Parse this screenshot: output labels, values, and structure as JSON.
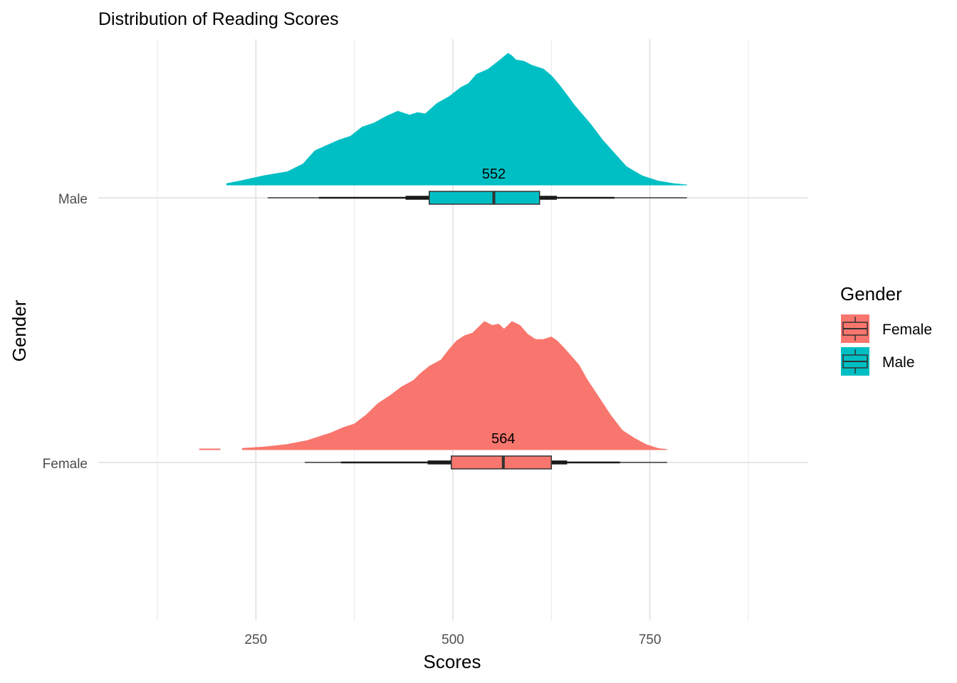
{
  "chart_data": {
    "type": "raincloud",
    "title": "Distribution of Reading Scores",
    "xlabel": "Scores",
    "ylabel": "Gender",
    "xlim": [
      50,
      950
    ],
    "x_ticks": [
      250,
      500,
      750
    ],
    "x_minor_gridlines": [
      125,
      375,
      625,
      875
    ],
    "grid": true,
    "legend": {
      "title": "Gender",
      "position": "right",
      "entries": [
        {
          "label": "Female",
          "color": "#F8766D"
        },
        {
          "label": "Male",
          "color": "#00BFC4"
        }
      ]
    },
    "series": [
      {
        "name": "Male",
        "color": "#00BFC4",
        "median_label": "552",
        "box": {
          "min": 265,
          "whisker_low": 330,
          "q1": 470,
          "median": 552,
          "q3": 610,
          "whisker_high": 705,
          "max": 797
        },
        "thick_interval": [
          440,
          632
        ],
        "density": {
          "x": [
            213,
            230,
            260,
            290,
            310,
            325,
            340,
            355,
            370,
            385,
            400,
            415,
            430,
            445,
            455,
            465,
            480,
            495,
            510,
            520,
            530,
            545,
            560,
            570,
            575,
            580,
            590,
            600,
            615,
            625,
            635,
            645,
            655,
            665,
            675,
            690,
            705,
            720,
            740,
            760,
            780,
            797
          ],
          "y": [
            0.01,
            0.03,
            0.07,
            0.1,
            0.16,
            0.26,
            0.3,
            0.34,
            0.37,
            0.44,
            0.47,
            0.52,
            0.56,
            0.53,
            0.55,
            0.54,
            0.62,
            0.67,
            0.74,
            0.77,
            0.84,
            0.88,
            0.95,
            1.0,
            0.98,
            0.95,
            0.94,
            0.91,
            0.88,
            0.83,
            0.76,
            0.68,
            0.6,
            0.53,
            0.46,
            0.34,
            0.24,
            0.14,
            0.07,
            0.03,
            0.01,
            0.0
          ]
        }
      },
      {
        "name": "Female",
        "color": "#F8766D",
        "median_label": "564",
        "box": {
          "min": 312,
          "whisker_low": 358,
          "q1": 498,
          "median": 564,
          "q3": 625,
          "whisker_high": 712,
          "max": 772
        },
        "thick_interval": [
          468,
          645
        ],
        "density": {
          "x": [
            233,
            260,
            290,
            315,
            330,
            345,
            360,
            375,
            390,
            405,
            420,
            435,
            450,
            460,
            470,
            485,
            495,
            505,
            515,
            525,
            540,
            550,
            558,
            565,
            575,
            585,
            595,
            605,
            615,
            625,
            632,
            640,
            650,
            660,
            670,
            685,
            700,
            715,
            730,
            745,
            760,
            772
          ],
          "y": [
            0.01,
            0.02,
            0.04,
            0.07,
            0.1,
            0.13,
            0.17,
            0.2,
            0.27,
            0.36,
            0.42,
            0.49,
            0.54,
            0.6,
            0.65,
            0.7,
            0.78,
            0.85,
            0.89,
            0.91,
            1.0,
            0.97,
            0.98,
            0.94,
            1.0,
            0.97,
            0.9,
            0.86,
            0.86,
            0.88,
            0.85,
            0.8,
            0.73,
            0.66,
            0.55,
            0.41,
            0.27,
            0.15,
            0.09,
            0.04,
            0.01,
            0.0
          ]
        },
        "outlier_segment": [
          178,
          205
        ]
      }
    ]
  }
}
